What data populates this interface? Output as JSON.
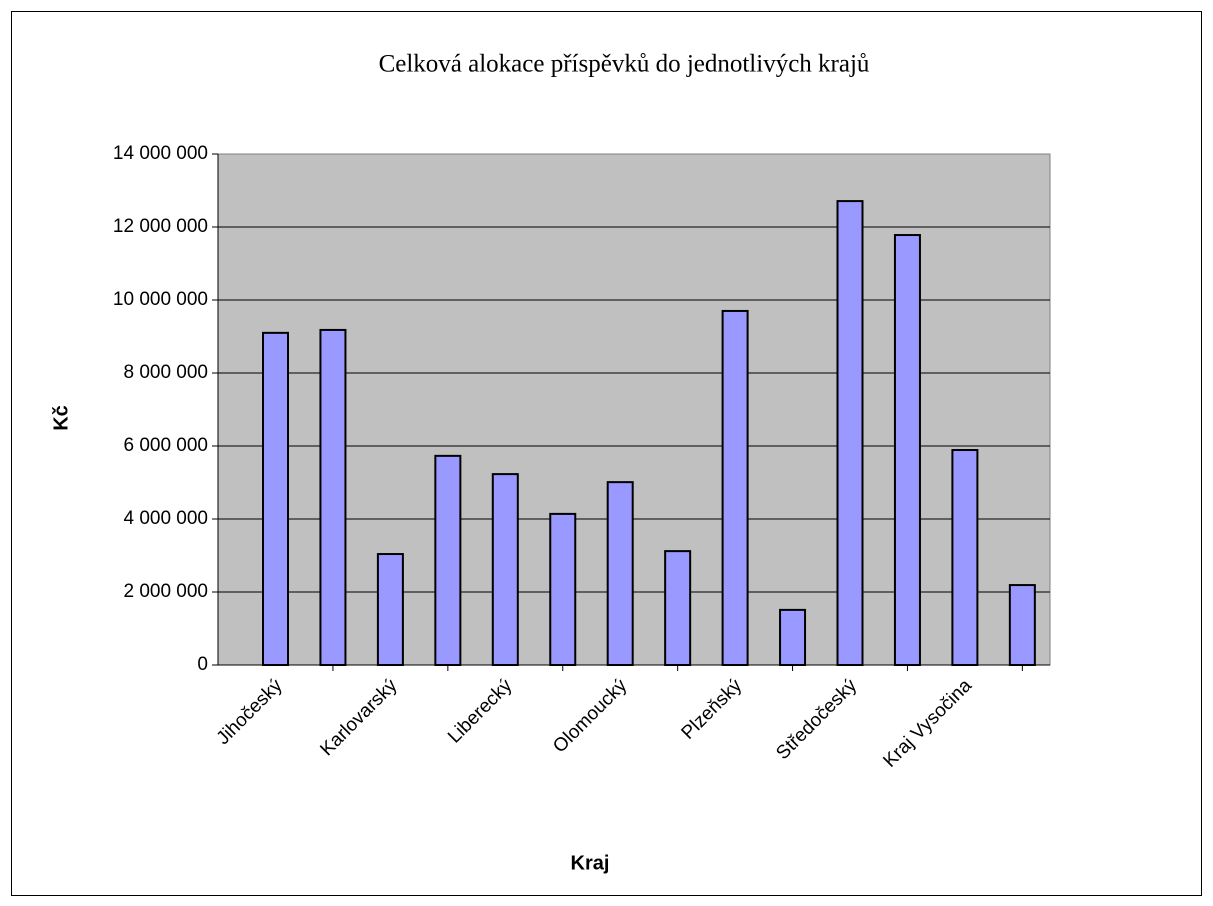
{
  "chart_data": {
    "type": "bar",
    "title": "Celková alokace příspěvků do jednotlivých krajů",
    "x_label": "Kraj",
    "y_label": "Kč",
    "categories": [
      "Jihočeský",
      null,
      "Karlovarský",
      null,
      "Liberecký",
      null,
      "Olomoucký",
      null,
      "Plzeňský",
      null,
      "Středočeský",
      null,
      "Kraj Vysočina",
      null
    ],
    "values": [
      9100000,
      9180000,
      3040000,
      5730000,
      5230000,
      4140000,
      5010000,
      3120000,
      9700000,
      1510000,
      12710000,
      11780000,
      5890000,
      2190000
    ],
    "color": "#9999ff",
    "ylim": [
      0,
      14000000
    ],
    "yticks": [
      0,
      {
        "value": 2000000,
        "label": "2 000 000"
      },
      {
        "value": 4000000,
        "label": "4 000 000"
      },
      {
        "value": 6000000,
        "label": "6 000 000"
      },
      {
        "value": 8000000,
        "label": "8 000 000"
      },
      {
        "value": 10000000,
        "label": "10 000 000"
      },
      {
        "value": 12000000,
        "label": "12 000 000"
      },
      {
        "value": 14000000,
        "label": "14 000 000"
      }
    ],
    "grid": true
  }
}
